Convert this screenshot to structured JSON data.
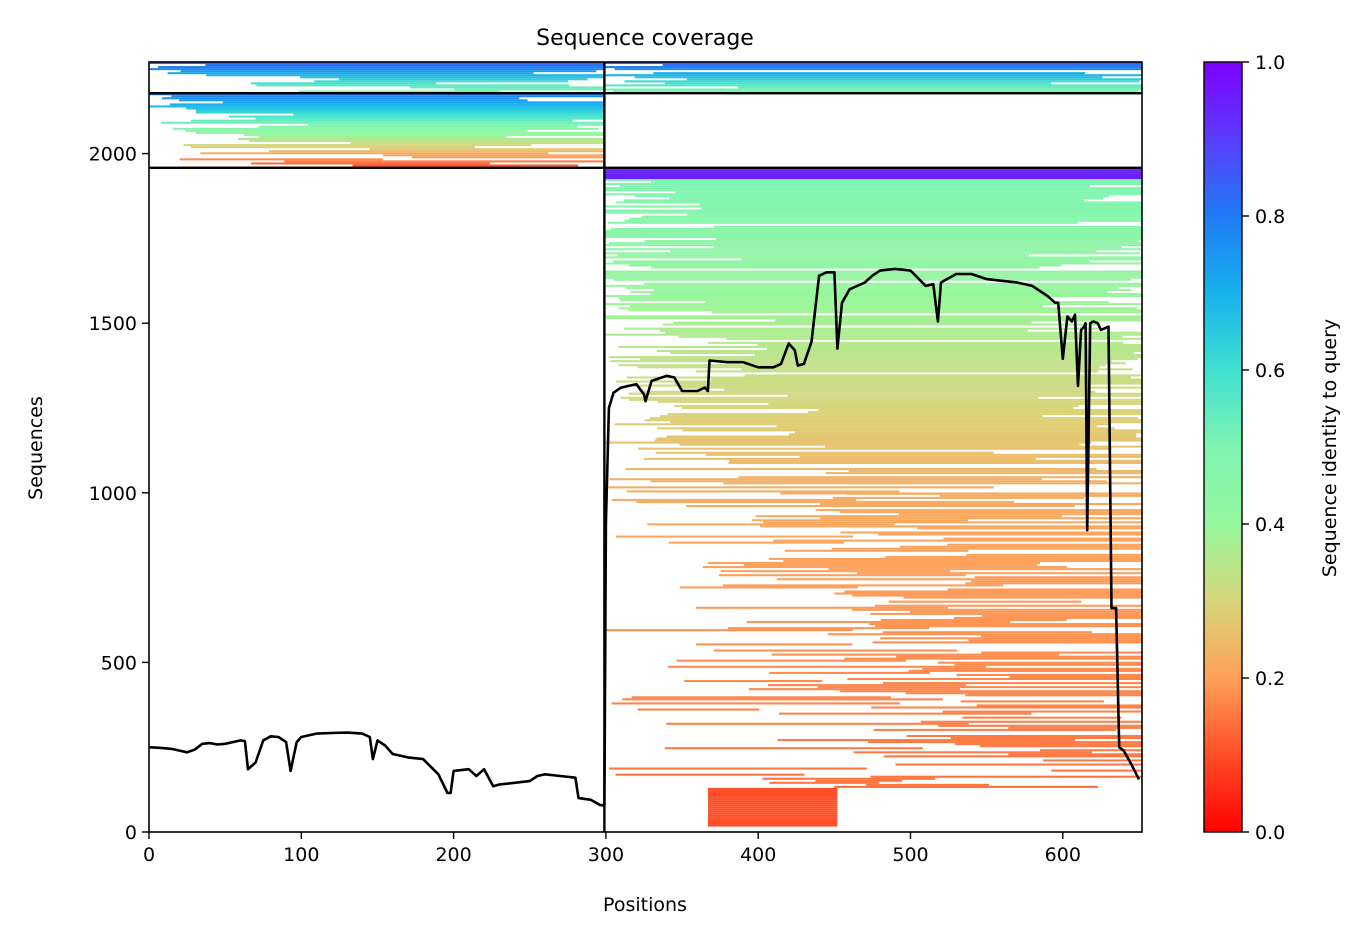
{
  "chart_data": {
    "type": "heatmap",
    "title": "Sequence coverage",
    "xlabel": "Positions",
    "ylabel": "Sequences",
    "xlim": [
      0,
      652
    ],
    "ylim": [
      0,
      2270
    ],
    "x_ticks": [
      0,
      100,
      200,
      300,
      400,
      500,
      600
    ],
    "y_ticks": [
      0,
      500,
      1000,
      1500,
      2000
    ],
    "x_tick_labels": [
      "0",
      "100",
      "200",
      "300",
      "400",
      "500",
      "600"
    ],
    "y_tick_labels": [
      "0",
      "500",
      "1000",
      "1500",
      "2000"
    ],
    "colorbar": {
      "label": "Sequence identity to query",
      "colormap": "rainbow_r",
      "range": [
        0.0,
        1.0
      ],
      "ticks": [
        0.0,
        0.2,
        0.4,
        0.6,
        0.8,
        1.0
      ],
      "tick_labels": [
        "0.0",
        "0.2",
        "0.4",
        "0.6",
        "0.8",
        "1.0"
      ]
    },
    "block_boundaries": {
      "x": [
        299
      ],
      "y": [
        1958,
        2178
      ]
    },
    "row_blocks": [
      {
        "x_range": [
          0,
          299
        ],
        "y_range": [
          2178,
          2270
        ],
        "identity_range": [
          0.45,
          0.85
        ],
        "coverage": [
          1.0,
          0.3
        ]
      },
      {
        "x_range": [
          0,
          299
        ],
        "y_range": [
          1958,
          2178
        ],
        "identity_range": [
          0.08,
          0.8
        ],
        "coverage": [
          1.0,
          0.55
        ]
      },
      {
        "x_range": [
          299,
          652
        ],
        "y_range": [
          2178,
          2270
        ],
        "identity_range": [
          0.45,
          0.85
        ],
        "coverage": [
          1.0,
          0.85
        ]
      },
      {
        "x_range": [
          299,
          652
        ],
        "y_range": [
          1925,
          1958
        ],
        "identity_range": [
          0.95,
          0.95
        ],
        "coverage": [
          1.0,
          1.0
        ]
      },
      {
        "x_range": [
          299,
          652
        ],
        "y_range": [
          1000,
          1925
        ],
        "identity_range": [
          0.22,
          0.5
        ],
        "coverage": [
          1.0,
          0.7
        ]
      },
      {
        "x_range": [
          299,
          652
        ],
        "y_range": [
          130,
          1000
        ],
        "identity_range": [
          0.14,
          0.22
        ],
        "coverage": [
          0.55,
          0.35
        ]
      },
      {
        "x_range": [
          367,
          452
        ],
        "y_range": [
          20,
          130
        ],
        "identity_range": [
          0.1,
          0.1
        ],
        "coverage": [
          1.0,
          1.0
        ]
      }
    ],
    "series": [
      {
        "type": "line",
        "color": "#000000",
        "x": [
          0,
          8,
          15,
          20,
          25,
          30,
          35,
          40,
          45,
          50,
          55,
          60,
          63,
          65,
          70,
          75,
          80,
          85,
          90,
          93,
          97,
          100,
          110,
          120,
          130,
          140,
          145,
          147,
          150,
          155,
          160,
          170,
          180,
          190,
          196,
          198,
          200,
          210,
          215,
          220,
          226,
          230,
          240,
          250,
          255,
          260,
          270,
          280,
          282,
          290,
          296,
          299,
          300,
          302,
          305,
          310,
          315,
          320,
          325,
          326,
          330,
          340,
          345,
          350,
          360,
          365,
          367,
          368,
          380,
          390,
          400,
          410,
          415,
          420,
          424,
          426,
          430,
          435,
          440,
          445,
          450,
          452,
          455,
          460,
          470,
          475,
          480,
          490,
          500,
          510,
          515,
          518,
          520,
          530,
          540,
          550,
          560,
          570,
          580,
          590,
          595,
          597,
          600,
          603,
          606,
          608,
          610,
          612,
          614,
          615,
          616,
          618,
          620,
          623,
          625,
          630,
          632,
          635,
          637,
          640,
          645,
          650
        ],
        "y": [
          250,
          248,
          245,
          240,
          235,
          243,
          260,
          262,
          258,
          260,
          265,
          270,
          268,
          185,
          205,
          270,
          282,
          280,
          265,
          180,
          265,
          280,
          290,
          292,
          293,
          290,
          280,
          215,
          270,
          255,
          230,
          220,
          215,
          170,
          115,
          115,
          180,
          185,
          165,
          185,
          135,
          140,
          145,
          150,
          165,
          170,
          165,
          160,
          100,
          95,
          80,
          78,
          910,
          1250,
          1295,
          1310,
          1315,
          1320,
          1290,
          1270,
          1330,
          1345,
          1340,
          1300,
          1300,
          1310,
          1300,
          1390,
          1385,
          1385,
          1370,
          1370,
          1380,
          1440,
          1420,
          1375,
          1380,
          1445,
          1640,
          1650,
          1650,
          1425,
          1560,
          1600,
          1620,
          1640,
          1655,
          1660,
          1655,
          1610,
          1615,
          1505,
          1620,
          1645,
          1645,
          1630,
          1625,
          1620,
          1610,
          1580,
          1560,
          1560,
          1395,
          1520,
          1505,
          1525,
          1315,
          1480,
          1490,
          1500,
          890,
          1500,
          1505,
          1500,
          1480,
          1490,
          660,
          660,
          250,
          240,
          200,
          155
        ]
      }
    ],
    "legend": "none"
  }
}
